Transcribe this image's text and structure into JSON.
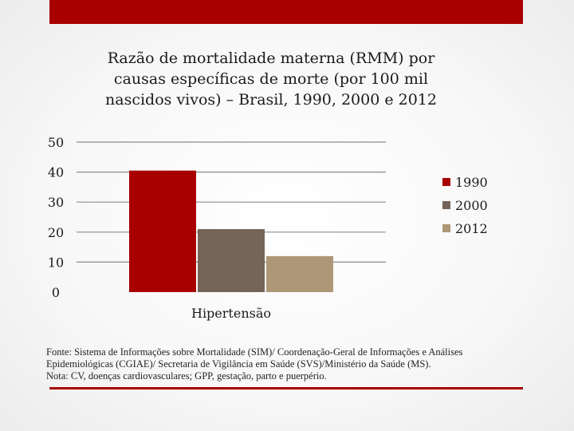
{
  "colors": {
    "accent": "#a80000",
    "series_1990": "#a80000",
    "series_2000": "#756458",
    "series_2012": "#ad9777",
    "gridline": "#8c8c8c"
  },
  "title_lines": [
    "Razão de mortalidade materna (RMM) por",
    "causas específicas de morte (por 100 mil",
    "nascidos vivos) – Brasil, 1990, 2000 e 2012"
  ],
  "chart_data": {
    "type": "bar",
    "title": "Razão de mortalidade materna (RMM) por causas específicas de morte (por 100 mil nascidos vivos) – Brasil, 1990, 2000 e 2012",
    "categories": [
      "Hipertensão"
    ],
    "series": [
      {
        "name": "1990",
        "values": [
          40.5
        ]
      },
      {
        "name": "2000",
        "values": [
          21
        ]
      },
      {
        "name": "2012",
        "values": [
          12
        ]
      }
    ],
    "ylim": [
      0,
      50
    ],
    "yticks": [
      0,
      10,
      20,
      30,
      40,
      50
    ],
    "xlabel": "",
    "ylabel": "",
    "grid": true,
    "legend_position": "right"
  },
  "footnote_lines": [
    "Fonte: Sistema de Informações sobre Mortalidade (SIM)/ Coordenação-Geral de Informações e Análises",
    "Epidemiológicas (CGIAE)/ Secretaria de Vigilância em Saúde (SVS)/Ministério da Saúde (MS).",
    "Nota: CV, doenças cardiovasculares; GPP, gestação, parto e puerpério."
  ]
}
